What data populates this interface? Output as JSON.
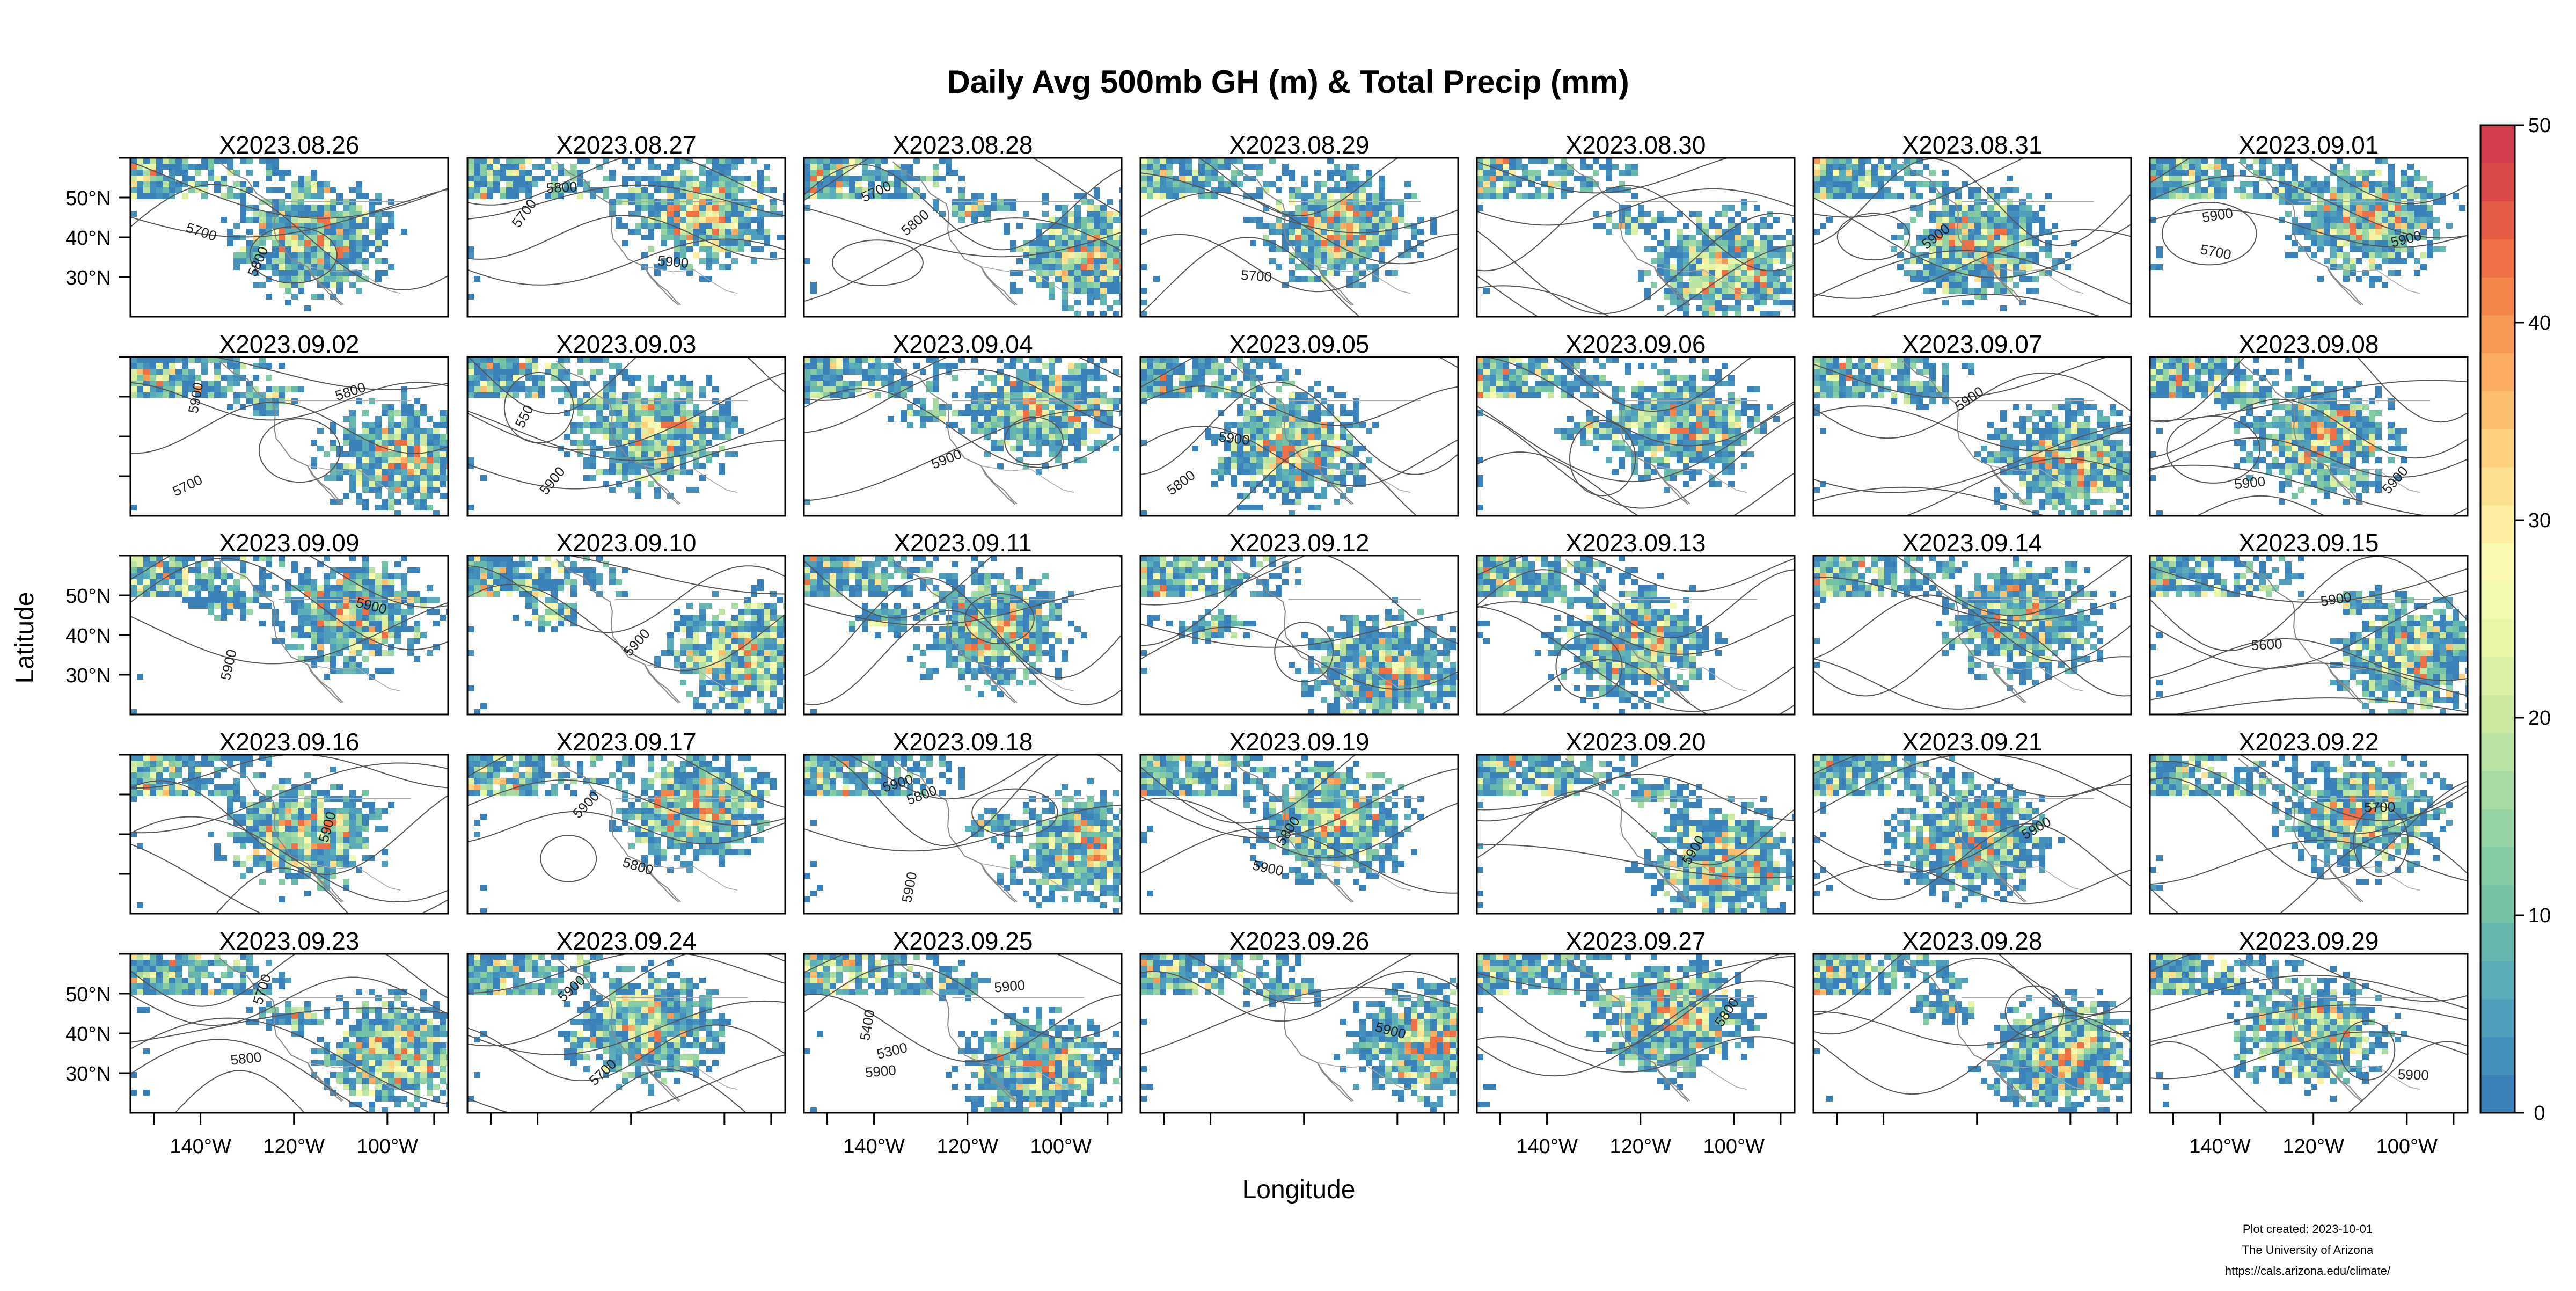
{
  "chart_data": {
    "type": "heatmap",
    "title": "Daily Avg 500mb GH (m) & Total Precip (mm)",
    "xlabel": "Longitude",
    "ylabel": "Latitude",
    "grid_layout": {
      "rows": 5,
      "cols": 7
    },
    "xlim": [
      -155,
      -87
    ],
    "ylim": [
      20,
      60
    ],
    "x_ticks": [
      -140,
      -120,
      -100
    ],
    "x_tick_labels": [
      "140°W",
      "120°W",
      "100°W"
    ],
    "y_ticks": [
      30,
      40,
      50
    ],
    "y_tick_labels": [
      "30°N",
      "40°N",
      "50°N"
    ],
    "colorbar": {
      "range": [
        0,
        50
      ],
      "ticks": [
        0,
        10,
        20,
        30,
        40,
        50
      ],
      "tick_labels": [
        "0",
        "10",
        "20",
        "30",
        "40",
        "50"
      ],
      "colors": [
        "#3b82bb",
        "#4390bd",
        "#4f9fbc",
        "#5badba",
        "#66b8ae",
        "#74c3a5",
        "#84cba4",
        "#96d3a5",
        "#a8dba4",
        "#bae3a3",
        "#cbe9a1",
        "#dbf0a3",
        "#e9f6a6",
        "#f3faaf",
        "#fbf8b0",
        "#fdeda0",
        "#fde08f",
        "#fdd17e",
        "#fdbf6f",
        "#fcad62",
        "#f89a55",
        "#f4854b",
        "#ee7044",
        "#e55c45",
        "#dc4a48",
        "#d43d4f"
      ]
    },
    "panels": [
      "X2023.08.26",
      "X2023.08.27",
      "X2023.08.28",
      "X2023.08.29",
      "X2023.08.30",
      "X2023.08.31",
      "X2023.09.01",
      "X2023.09.02",
      "X2023.09.03",
      "X2023.09.04",
      "X2023.09.05",
      "X2023.09.06",
      "X2023.09.07",
      "X2023.09.08",
      "X2023.09.09",
      "X2023.09.10",
      "X2023.09.11",
      "X2023.09.12",
      "X2023.09.13",
      "X2023.09.14",
      "X2023.09.15",
      "X2023.09.16",
      "X2023.09.17",
      "X2023.09.18",
      "X2023.09.19",
      "X2023.09.20",
      "X2023.09.21",
      "X2023.09.22",
      "X2023.09.23",
      "X2023.09.24",
      "X2023.09.25",
      "X2023.09.26",
      "X2023.09.27",
      "X2023.09.28",
      "X2023.09.29"
    ],
    "contour_labels": [
      {
        "panel": 0,
        "labels": [
          "5700",
          "5800"
        ]
      },
      {
        "panel": 1,
        "labels": [
          "5700",
          "5800",
          "5900"
        ]
      },
      {
        "panel": 2,
        "labels": [
          "5700",
          "5800"
        ]
      },
      {
        "panel": 3,
        "labels": [
          "5700"
        ]
      },
      {
        "panel": 5,
        "labels": [
          "5900"
        ]
      },
      {
        "panel": 6,
        "labels": [
          "5900",
          "5700",
          "5900"
        ]
      },
      {
        "panel": 7,
        "labels": [
          "5900",
          "5700",
          "5800"
        ]
      },
      {
        "panel": 8,
        "labels": [
          "5900",
          "550"
        ]
      },
      {
        "panel": 9,
        "labels": [
          "5900"
        ]
      },
      {
        "panel": 10,
        "labels": [
          "5900",
          "5800"
        ]
      },
      {
        "panel": 12,
        "labels": [
          "5900"
        ]
      },
      {
        "panel": 13,
        "labels": [
          "5900",
          "5900"
        ]
      },
      {
        "panel": 14,
        "labels": [
          "5900",
          "5900"
        ]
      },
      {
        "panel": 15,
        "labels": [
          "5900"
        ]
      },
      {
        "panel": 20,
        "labels": [
          "5600",
          "5900"
        ]
      },
      {
        "panel": 21,
        "labels": [
          "5900"
        ]
      },
      {
        "panel": 22,
        "labels": [
          "5900",
          "5800"
        ]
      },
      {
        "panel": 23,
        "labels": [
          "5900",
          "5800",
          "5900"
        ]
      },
      {
        "panel": 24,
        "labels": [
          "5900",
          "5800"
        ]
      },
      {
        "panel": 25,
        "labels": [
          "5900"
        ]
      },
      {
        "panel": 26,
        "labels": [
          "5900"
        ]
      },
      {
        "panel": 27,
        "labels": [
          "5700"
        ]
      },
      {
        "panel": 28,
        "labels": [
          "5700",
          "5800"
        ]
      },
      {
        "panel": 29,
        "labels": [
          "5700",
          "5900"
        ]
      },
      {
        "panel": 30,
        "labels": [
          "5300",
          "5400",
          "5900",
          "5900"
        ]
      },
      {
        "panel": 31,
        "labels": [
          "5900"
        ]
      },
      {
        "panel": 32,
        "labels": [
          "5800"
        ]
      },
      {
        "panel": 34,
        "labels": [
          "5900"
        ]
      }
    ]
  },
  "credit": {
    "line1": "Plot created: 2023-10-01",
    "line2": "The University of Arizona",
    "line3": "https://cals.arizona.edu/climate/"
  }
}
